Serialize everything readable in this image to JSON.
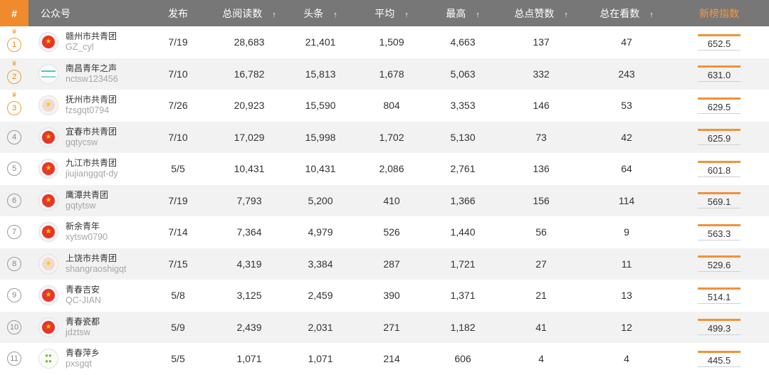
{
  "header": {
    "rank": "#",
    "account": "公众号",
    "publish": "发布",
    "total_reads": "总阅读数",
    "headline": "头条",
    "average": "平均",
    "max": "最高",
    "total_likes": "总点赞数",
    "total_watching": "总在看数",
    "index": "新榜指数",
    "sort_arrow": "↑"
  },
  "colors": {
    "accent": "#ef8b2c",
    "header_bg": "#777777",
    "index_bar": "#f0923a"
  },
  "rows": [
    {
      "rank": "1",
      "name": "赣州市共青团",
      "id": "GZ_cyl",
      "avatar": "badge-icon",
      "publish": "7/19",
      "total_reads": "28,683",
      "headline": "21,401",
      "average": "1,509",
      "max": "4,663",
      "likes": "137",
      "watching": "47",
      "index": "652.5"
    },
    {
      "rank": "2",
      "name": "南昌青年之声",
      "id": "nctsw123456",
      "avatar": "nc-logo-icon",
      "publish": "7/10",
      "total_reads": "16,782",
      "headline": "15,813",
      "average": "1,678",
      "max": "5,063",
      "likes": "332",
      "watching": "243",
      "index": "631.0"
    },
    {
      "rank": "3",
      "name": "抚州市共青团",
      "id": "fzsgqt0794",
      "avatar": "badge-icon",
      "publish": "7/26",
      "total_reads": "20,923",
      "headline": "15,590",
      "average": "804",
      "max": "3,353",
      "likes": "146",
      "watching": "53",
      "index": "629.5"
    },
    {
      "rank": "4",
      "name": "宜春市共青团",
      "id": "gqtycsw",
      "avatar": "badge-icon",
      "publish": "7/10",
      "total_reads": "17,029",
      "headline": "15,998",
      "average": "1,702",
      "max": "5,130",
      "likes": "73",
      "watching": "42",
      "index": "625.9"
    },
    {
      "rank": "5",
      "name": "九江市共青团",
      "id": "jiujianggqt-dy",
      "avatar": "badge-icon",
      "publish": "5/5",
      "total_reads": "10,431",
      "headline": "10,431",
      "average": "2,086",
      "max": "2,761",
      "likes": "136",
      "watching": "64",
      "index": "601.8"
    },
    {
      "rank": "6",
      "name": "鹰潭共青团",
      "id": "gqtytsw",
      "avatar": "badge-icon",
      "publish": "7/19",
      "total_reads": "7,793",
      "headline": "5,200",
      "average": "410",
      "max": "1,366",
      "likes": "156",
      "watching": "114",
      "index": "569.1"
    },
    {
      "rank": "7",
      "name": "新余青年",
      "id": "xytsw0790",
      "avatar": "badge-icon",
      "publish": "7/14",
      "total_reads": "7,364",
      "headline": "4,979",
      "average": "526",
      "max": "1,440",
      "likes": "56",
      "watching": "9",
      "index": "563.3"
    },
    {
      "rank": "8",
      "name": "上饶市共青团",
      "id": "shangraoshigqt",
      "avatar": "badge-icon",
      "publish": "7/15",
      "total_reads": "4,319",
      "headline": "3,384",
      "average": "287",
      "max": "1,721",
      "likes": "27",
      "watching": "11",
      "index": "529.6"
    },
    {
      "rank": "9",
      "name": "青春吉安",
      "id": "QC-JIAN",
      "avatar": "badge-icon",
      "publish": "5/8",
      "total_reads": "3,125",
      "headline": "2,459",
      "average": "390",
      "max": "1,371",
      "likes": "21",
      "watching": "13",
      "index": "514.1"
    },
    {
      "rank": "10",
      "name": "青春瓷都",
      "id": "jdztsw",
      "avatar": "badge-icon",
      "publish": "5/9",
      "total_reads": "2,439",
      "headline": "2,031",
      "average": "271",
      "max": "1,182",
      "likes": "41",
      "watching": "12",
      "index": "499.3"
    },
    {
      "rank": "11",
      "name": "青春萍乡",
      "id": "pxsgqt",
      "avatar": "px-logo-icon",
      "publish": "5/5",
      "total_reads": "1,071",
      "headline": "1,071",
      "average": "214",
      "max": "606",
      "likes": "4",
      "watching": "4",
      "index": "445.5"
    }
  ]
}
